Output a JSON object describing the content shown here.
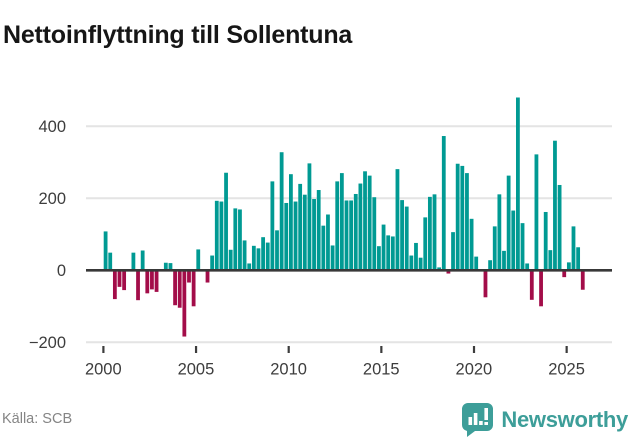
{
  "title": "Nettoinflyttning till Sollentuna",
  "source": "Källa: SCB",
  "branding": {
    "name": "Newsworthy",
    "color": "#3D9E99"
  },
  "chart_data": {
    "type": "bar",
    "title": "Nettoinflyttning till Sollentuna",
    "frequency": "quarterly",
    "start": "2000-Q1",
    "end": "2025-Q4",
    "x_ticks": [
      "2000",
      "2005",
      "2010",
      "2015",
      "2020",
      "2025"
    ],
    "y_ticks": [
      "400",
      "200",
      "0",
      "−200"
    ],
    "y_tick_values": [
      400,
      200,
      0,
      -200
    ],
    "ylim": [
      -230,
      550
    ],
    "grid": true,
    "legend": false,
    "colors": {
      "positive": "#009A93",
      "negative": "#A30D49"
    },
    "values": [
      108,
      49,
      -80,
      -46,
      -55,
      0,
      49,
      -83,
      55,
      -64,
      -53,
      -60,
      0,
      21,
      20,
      -97,
      -104,
      -184,
      -34,
      -100,
      58,
      0,
      -34,
      41,
      193,
      191,
      271,
      57,
      172,
      169,
      83,
      19,
      68,
      61,
      92,
      77,
      247,
      111,
      328,
      187,
      267,
      191,
      240,
      210,
      297,
      198,
      223,
      124,
      155,
      69,
      247,
      270,
      194,
      194,
      212,
      241,
      275,
      263,
      203,
      67,
      127,
      97,
      94,
      281,
      195,
      177,
      41,
      76,
      35,
      147,
      204,
      211,
      8,
      373,
      -9,
      106,
      296,
      290,
      270,
      143,
      38,
      0,
      -75,
      28,
      122,
      211,
      54,
      263,
      166,
      480,
      131,
      19,
      -82,
      322,
      -100,
      162,
      56,
      360,
      237,
      -19,
      22,
      122,
      64,
      -54
    ]
  }
}
